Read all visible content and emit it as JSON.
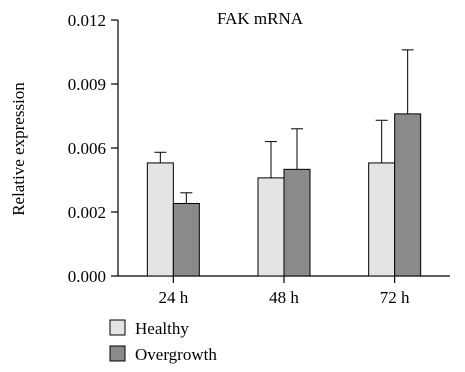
{
  "chart_data": {
    "type": "bar",
    "title": "FAK mRNA",
    "xlabel": "",
    "ylabel": "Relative expression",
    "categories": [
      "24 h",
      "48 h",
      "72 h"
    ],
    "yticks": [
      "0.000",
      "0.002",
      "0.006",
      "0.009",
      "0.012"
    ],
    "ylim": [
      0,
      0.012
    ],
    "series": [
      {
        "name": "Healthy",
        "color": "#e4e4e4",
        "values": [
          0.0053,
          0.0046,
          0.0053
        ],
        "errors": [
          0.0005,
          0.0017,
          0.002
        ]
      },
      {
        "name": "Overgrowth",
        "color": "#8a8a8a",
        "values": [
          0.0034,
          0.005,
          0.0076
        ],
        "errors": [
          0.0005,
          0.0019,
          0.003
        ]
      }
    ],
    "legend": "bottom-left",
    "grid": false
  }
}
